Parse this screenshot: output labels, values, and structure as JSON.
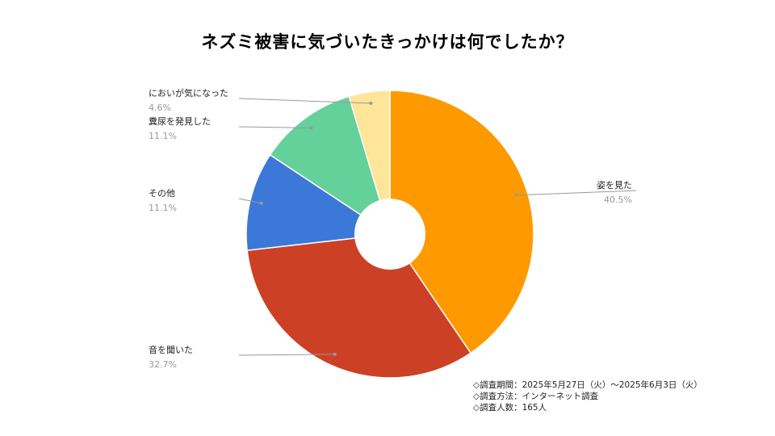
{
  "chart_data": {
    "type": "pie",
    "title": "ネズミ被害に気づいたきっかけは何でしたか？",
    "donut": true,
    "slices": [
      {
        "label": "姿を見た",
        "value": 40.5,
        "value_label": "40.5%",
        "color": "#FF9900"
      },
      {
        "label": "音を聞いた",
        "value": 32.7,
        "value_label": "32.7%",
        "color": "#CC4125"
      },
      {
        "label": "その他",
        "value": 11.1,
        "value_label": "11.1%",
        "color": "#3C78D8"
      },
      {
        "label": "糞尿を発見した",
        "value": 11.1,
        "value_label": "11.1%",
        "color": "#64D19A"
      },
      {
        "label": "においが気になった",
        "value": 4.6,
        "value_label": "4.6%",
        "color": "#FFE599"
      }
    ]
  },
  "notes": [
    "◇調査期間：2025年5月27日（火）〜2025年6月3日（火）",
    "◇調査方法：インターネット調査",
    "◇調査人数：165人"
  ]
}
